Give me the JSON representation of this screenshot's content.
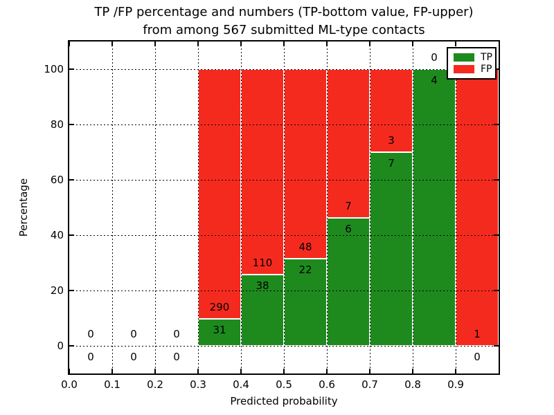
{
  "title": {
    "line1": "TP /FP percentage and numbers (TP-bottom value, FP-upper)",
    "line2": "from among 567 submitted ML-type contacts"
  },
  "axes": {
    "xlabel": "Predicted probability",
    "ylabel": "Percentage",
    "xtick_values": [
      0.0,
      0.1,
      0.2,
      0.3,
      0.4,
      0.5,
      0.6,
      0.7,
      0.8,
      0.9
    ],
    "xtick_labels": [
      "0.0",
      "0.1",
      "0.2",
      "0.3",
      "0.4",
      "0.5",
      "0.6",
      "0.7",
      "0.8",
      "0.9"
    ],
    "ytick_values": [
      0,
      20,
      40,
      60,
      80,
      100
    ],
    "ytick_labels": [
      "0",
      "20",
      "40",
      "60",
      "80",
      "100"
    ],
    "xlim": [
      0.0,
      1.0
    ],
    "ylim": [
      -10,
      110
    ],
    "grid": "dotted"
  },
  "legend": {
    "position": "upper right",
    "items": [
      {
        "label": "TP",
        "color": "#1e8a1e"
      },
      {
        "label": "FP",
        "color": "#f52a1f"
      }
    ]
  },
  "chart_data": {
    "type": "bar",
    "subtype": "stacked-percentage",
    "title": "TP /FP percentage and numbers (TP-bottom value, FP-upper) from among 567 submitted ML-type contacts",
    "xlabel": "Predicted probability",
    "ylabel": "Percentage",
    "xlim": [
      0.0,
      1.0
    ],
    "ylim": [
      -10,
      110
    ],
    "grid": true,
    "legend_position": "upper right",
    "bin_edges": [
      0.0,
      0.1,
      0.2,
      0.3,
      0.4,
      0.5,
      0.6,
      0.7,
      0.8,
      0.9,
      1.0
    ],
    "categories": [
      "0.0-0.1",
      "0.1-0.2",
      "0.2-0.3",
      "0.3-0.4",
      "0.4-0.5",
      "0.5-0.6",
      "0.6-0.7",
      "0.7-0.8",
      "0.8-0.9",
      "0.9-1.0"
    ],
    "series": [
      {
        "name": "TP",
        "color": "#1e8a1e",
        "counts": [
          0,
          0,
          0,
          31,
          38,
          22,
          6,
          7,
          4,
          0
        ]
      },
      {
        "name": "FP",
        "color": "#f52a1f",
        "counts": [
          0,
          0,
          0,
          290,
          110,
          48,
          7,
          3,
          0,
          1
        ]
      }
    ],
    "tp_percent_by_bin": [
      null,
      null,
      null,
      9.66,
      25.68,
      31.43,
      46.15,
      70.0,
      100.0,
      0.0
    ],
    "total_contacts": 567,
    "annotation_rule": "FP count printed above the TP/FP boundary, TP count printed below it"
  },
  "colors": {
    "tp": "#1e8a1e",
    "fp": "#f52a1f",
    "bar_edge": "#ffffff",
    "grid": "#000000",
    "spine": "#000000",
    "background": "#ffffff",
    "text": "#000000"
  }
}
